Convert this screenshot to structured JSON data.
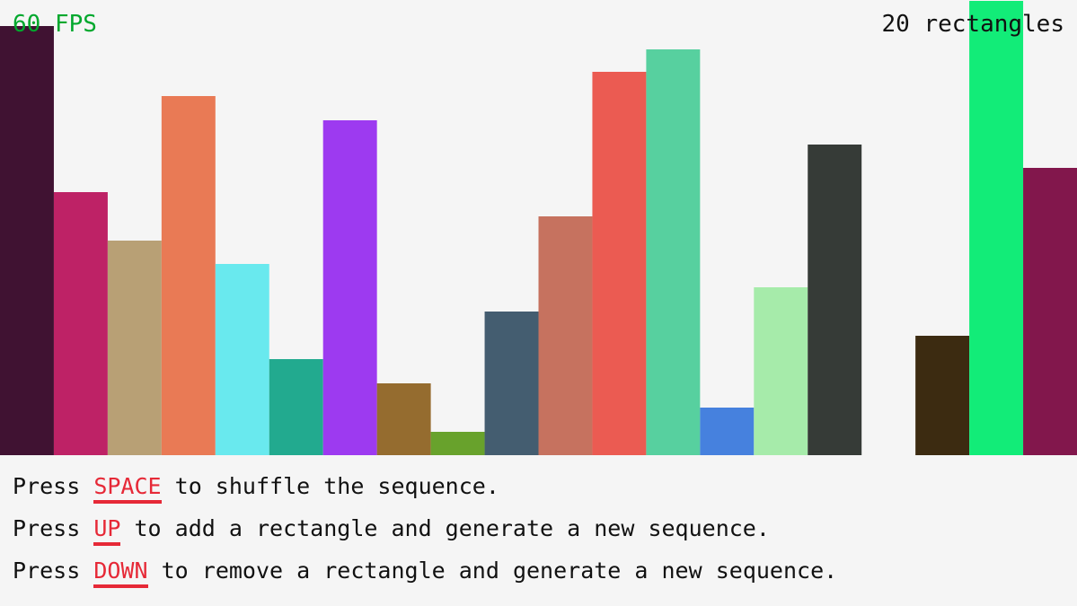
{
  "header": {
    "fps": "60 FPS",
    "count": "20 rectangles"
  },
  "rectangles": {
    "values": [
      478,
      293,
      239,
      400,
      213,
      107,
      373,
      80,
      26,
      160,
      266,
      427,
      452,
      53,
      187,
      346,
      0,
      133,
      506,
      320
    ],
    "colors": [
      "#401232",
      "#be2266",
      "#b8a075",
      "#e97a55",
      "#69e9ee",
      "#22aa8f",
      "#9d3af0",
      "#956c2f",
      "#68a22c",
      "#445d70",
      "#c6725f",
      "#eb5b52",
      "#57d09f",
      "#4681de",
      "#a6ebaa",
      "#363b37",
      "#f5f5f5",
      "#3c2b11",
      "#12ec78",
      "#82174c"
    ]
  },
  "instructions": [
    {
      "before": "Press",
      "key": "SPACE",
      "after": "to shuffle the sequence."
    },
    {
      "before": "Press",
      "key": "UP",
      "after": "to add a rectangle and generate a new sequence."
    },
    {
      "before": "Press",
      "key": "DOWN",
      "after": "to remove a rectangle and generate a new sequence."
    }
  ]
}
